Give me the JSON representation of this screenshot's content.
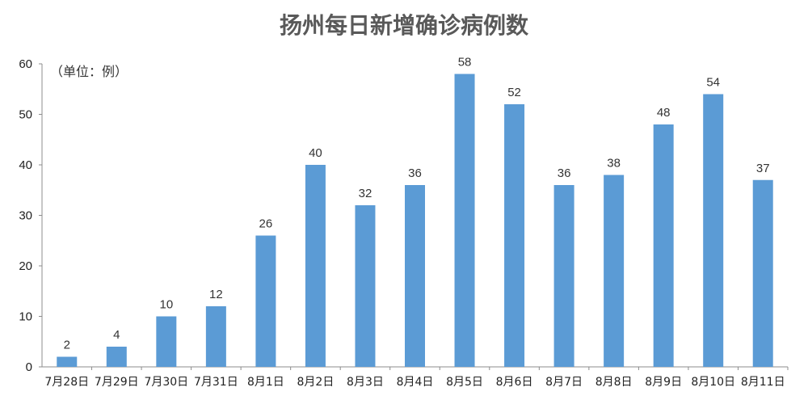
{
  "chart_data": {
    "type": "bar",
    "title": "扬州每日新增确诊病例数",
    "unit_label": "（单位：例）",
    "categories": [
      "7月28日",
      "7月29日",
      "7月30日",
      "7月31日",
      "8月1日",
      "8月2日",
      "8月3日",
      "8月4日",
      "8月5日",
      "8月6日",
      "8月7日",
      "8月8日",
      "8月9日",
      "8月10日",
      "8月11日"
    ],
    "values": [
      2,
      4,
      10,
      12,
      26,
      40,
      32,
      36,
      58,
      52,
      36,
      38,
      48,
      54,
      37
    ],
    "ylim": [
      0,
      60
    ],
    "yticks": [
      "0",
      "10",
      "20",
      "30",
      "40",
      "50",
      "60"
    ],
    "grid": false,
    "legend": "none",
    "bar_color": "#5b9bd5"
  }
}
